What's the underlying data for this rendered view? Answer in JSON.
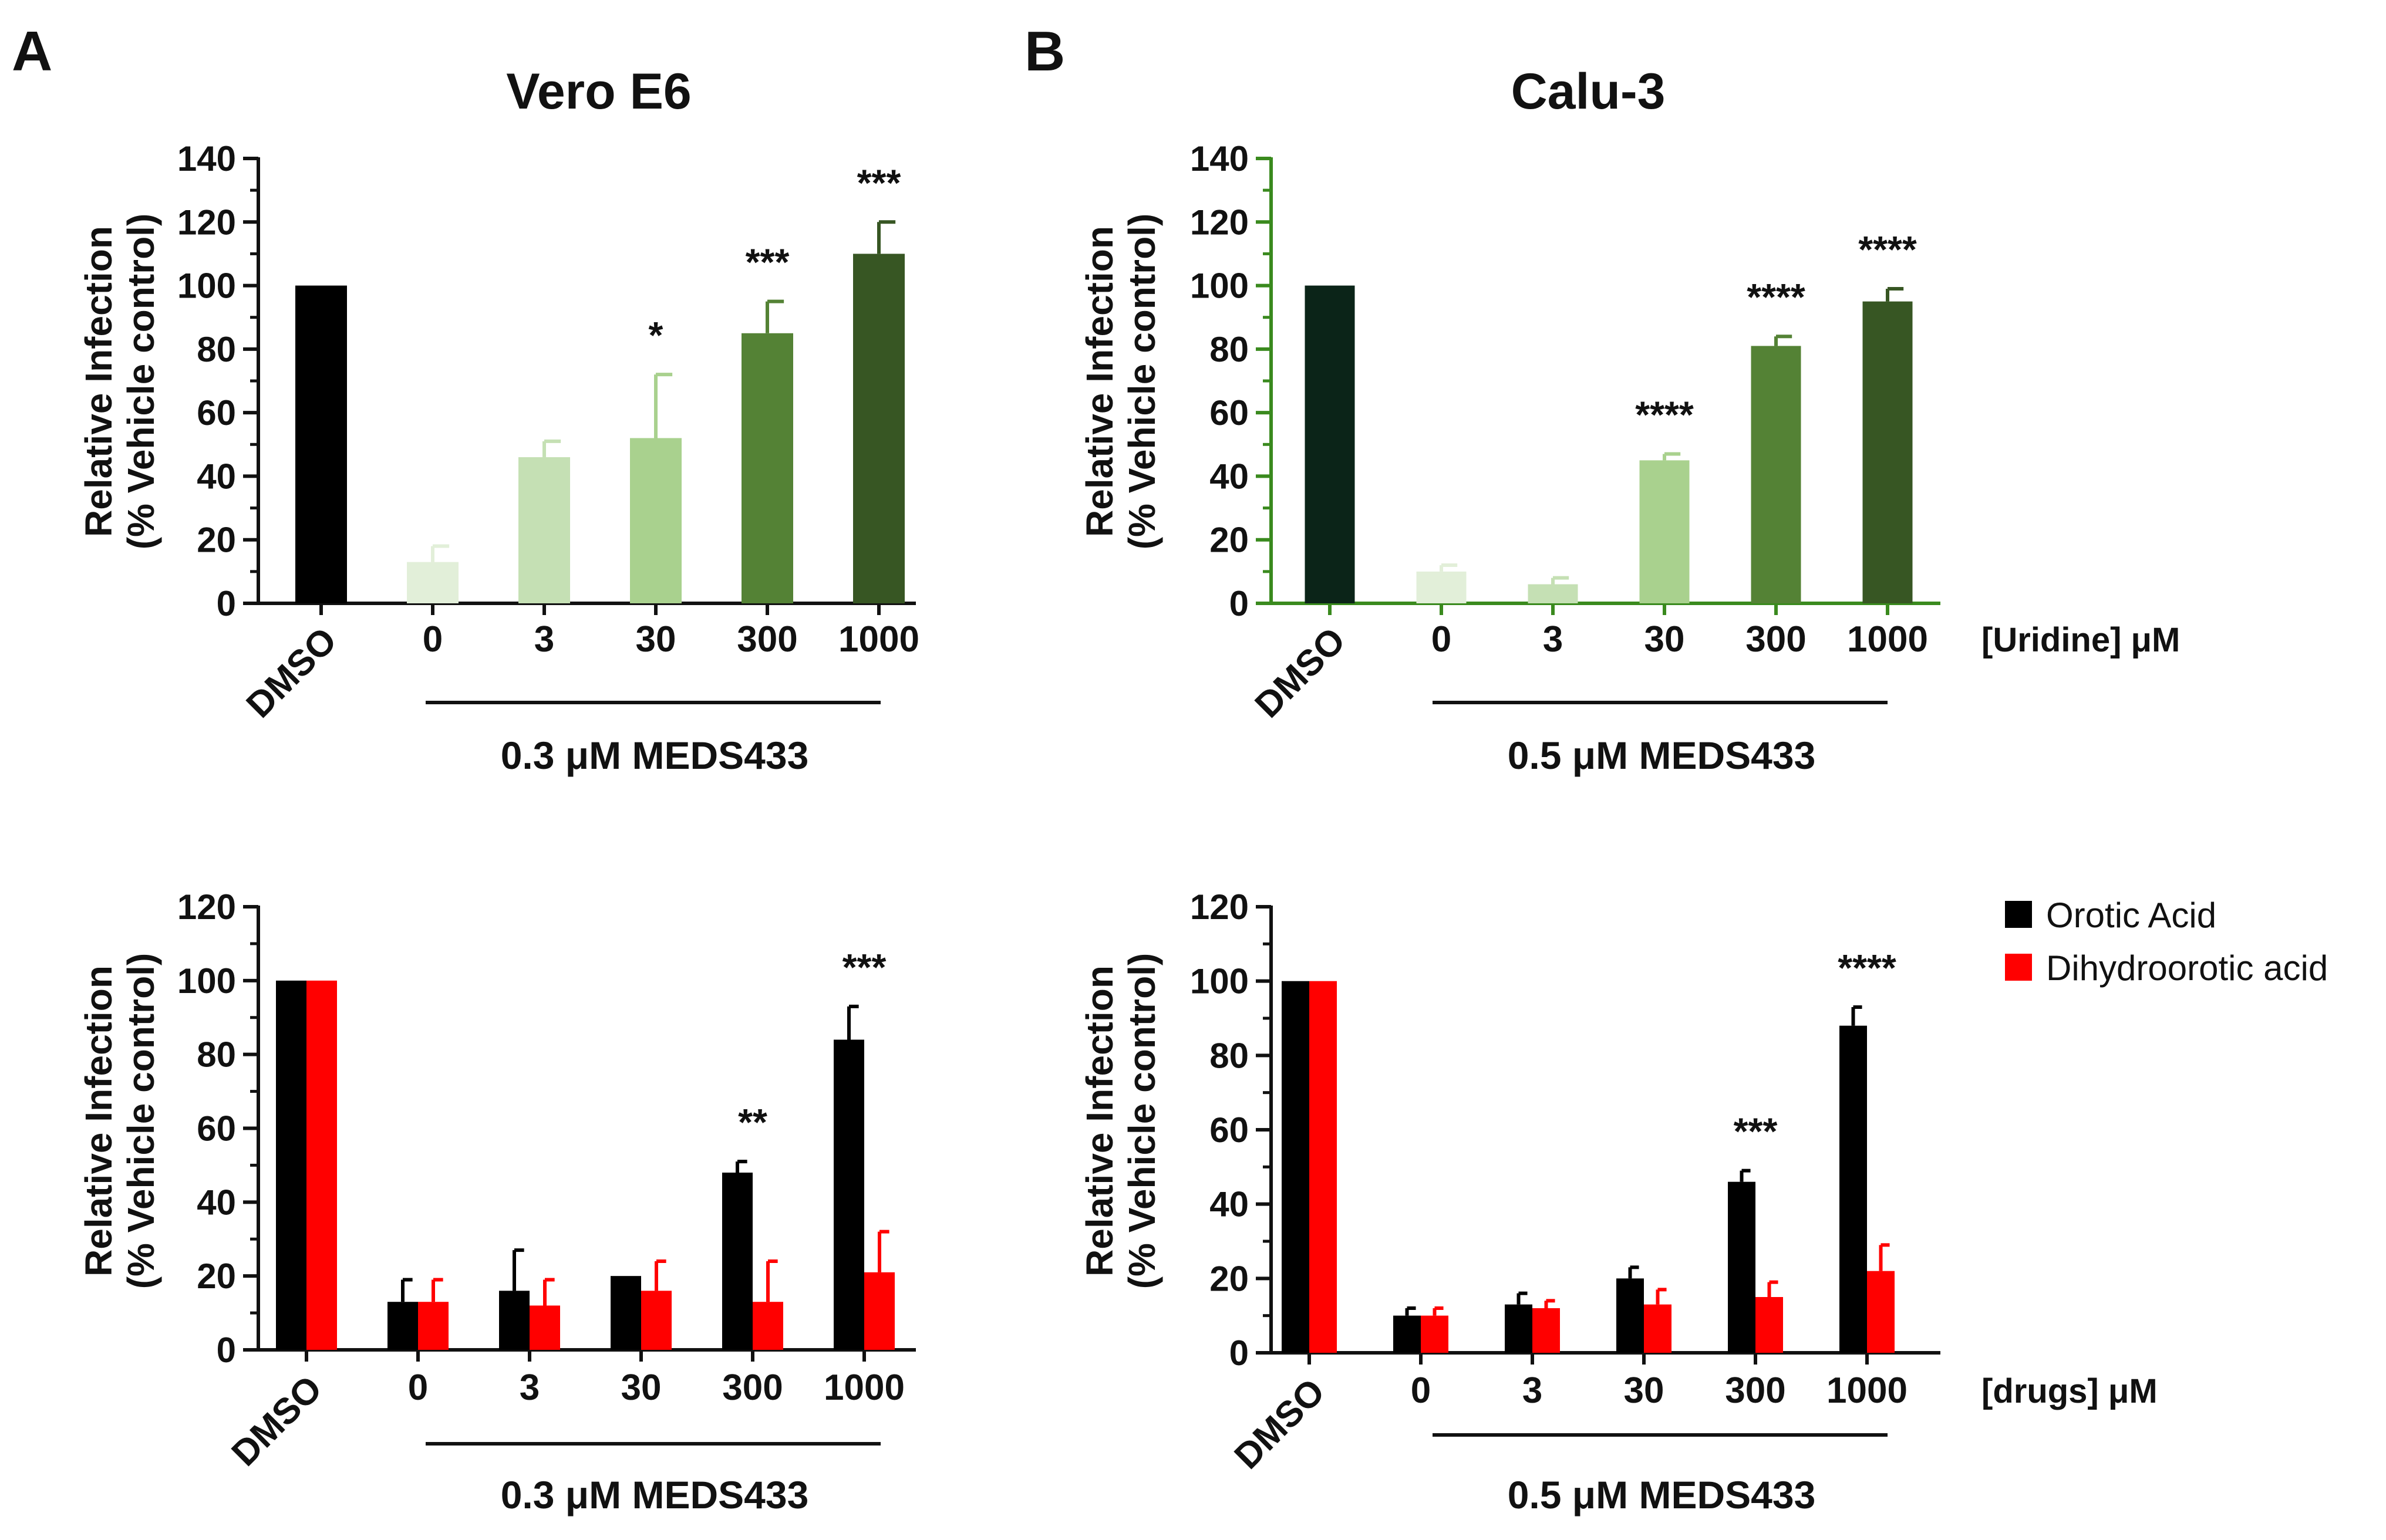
{
  "chart_data": [
    {
      "panel": "A",
      "type": "bar",
      "title": "Vero E6",
      "ylabel_line1": "Relative Infection",
      "ylabel_line2": "(% Vehicle control)",
      "ylim": [
        0,
        140
      ],
      "yticks": [
        0,
        20,
        40,
        60,
        80,
        100,
        120,
        140
      ],
      "categories": [
        "DMSO",
        "0",
        "3",
        "30",
        "300",
        "1000"
      ],
      "treatment_label": "0.3 μM MEDS433",
      "axis_color": "#111111",
      "series": [
        {
          "name": "Uridine",
          "values": [
            100,
            13,
            46,
            52,
            85,
            110
          ],
          "errors": [
            0,
            5,
            5,
            20,
            10,
            10
          ],
          "colors": [
            "#000000",
            "#e2efd9",
            "#c5e0b4",
            "#a9d18e",
            "#548235",
            "#375623"
          ]
        }
      ],
      "significance": [
        "",
        "",
        "",
        "*",
        "***",
        "***"
      ]
    },
    {
      "panel": "B",
      "type": "bar",
      "title": "Calu-3",
      "ylabel_line1": "Relative Infection",
      "ylabel_line2": "(% Vehicle control)",
      "ylim": [
        0,
        140
      ],
      "yticks": [
        0,
        20,
        40,
        60,
        80,
        100,
        120,
        140
      ],
      "categories": [
        "DMSO",
        "0",
        "3",
        "30",
        "300",
        "1000"
      ],
      "treatment_label": "0.5 μM MEDS433",
      "xunit_label": "[Uridine] μM",
      "axis_color": "#3a8a1e",
      "series": [
        {
          "name": "Uridine",
          "values": [
            100,
            10,
            6,
            45,
            81,
            95
          ],
          "errors": [
            0,
            2,
            2,
            2,
            3,
            4
          ],
          "colors": [
            "#0b2418",
            "#e2efd9",
            "#c5e0b4",
            "#a9d18e",
            "#548235",
            "#375623"
          ]
        }
      ],
      "significance": [
        "",
        "",
        "",
        "****",
        "****",
        "****"
      ]
    },
    {
      "panel": "A-lower",
      "type": "bar",
      "ylabel_line1": "Relative Infection",
      "ylabel_line2": "(% Vehicle control)",
      "ylim": [
        0,
        120
      ],
      "yticks": [
        0,
        20,
        40,
        60,
        80,
        100,
        120
      ],
      "categories": [
        "DMSO",
        "0",
        "3",
        "30",
        "300",
        "1000"
      ],
      "treatment_label": "0.3 μM MEDS433",
      "axis_color": "#111111",
      "series": [
        {
          "name": "Orotic Acid",
          "color": "#000000",
          "values": [
            100,
            13,
            16,
            20,
            48,
            84
          ],
          "errors": [
            0,
            6,
            11,
            0,
            3,
            9
          ]
        },
        {
          "name": "Dihydroorotic acid",
          "color": "#ff0000",
          "values": [
            100,
            13,
            12,
            16,
            13,
            21
          ],
          "errors": [
            0,
            6,
            7,
            8,
            11,
            11
          ]
        }
      ],
      "significance": [
        "",
        "",
        "",
        "",
        "**",
        "***"
      ]
    },
    {
      "panel": "B-lower",
      "type": "bar",
      "ylabel_line1": "Relative Infection",
      "ylabel_line2": "(% Vehicle control)",
      "ylim": [
        0,
        120
      ],
      "yticks": [
        0,
        20,
        40,
        60,
        80,
        100,
        120
      ],
      "categories": [
        "DMSO",
        "0",
        "3",
        "30",
        "300",
        "1000"
      ],
      "treatment_label": "0.5 μM MEDS433",
      "xunit_label": "[drugs] μM",
      "axis_color": "#111111",
      "series": [
        {
          "name": "Orotic Acid",
          "color": "#000000",
          "values": [
            100,
            10,
            13,
            20,
            46,
            88
          ],
          "errors": [
            0,
            2,
            3,
            3,
            3,
            5
          ]
        },
        {
          "name": "Dihydroorotic acid",
          "color": "#ff0000",
          "values": [
            100,
            10,
            12,
            13,
            15,
            22
          ],
          "errors": [
            0,
            2,
            2,
            4,
            4,
            7
          ]
        }
      ],
      "significance": [
        "",
        "",
        "",
        "",
        "***",
        "****"
      ]
    }
  ],
  "legend": [
    {
      "label": "Orotic Acid",
      "color": "#000000"
    },
    {
      "label": "Dihydroorotic acid",
      "color": "#ff0000"
    }
  ]
}
